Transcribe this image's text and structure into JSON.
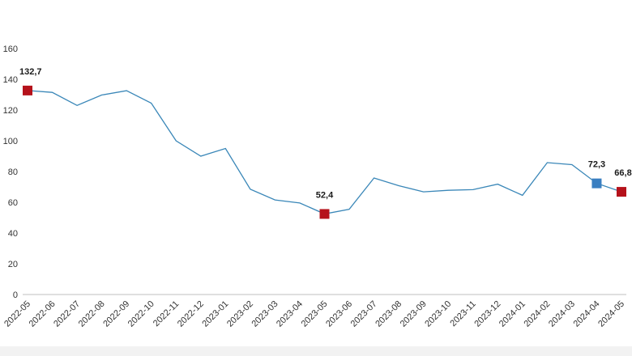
{
  "chart_data": {
    "type": "line",
    "title": "",
    "xlabel": "",
    "ylabel": "",
    "ylim": [
      0,
      160
    ],
    "yticks": [
      0,
      20,
      40,
      60,
      80,
      100,
      120,
      140,
      160
    ],
    "grid": false,
    "legend": "none",
    "categories": [
      "2022-05",
      "2022-06",
      "2022-07",
      "2022-08",
      "2022-09",
      "2022-10",
      "2022-11",
      "2022-12",
      "2023-01",
      "2023-02",
      "2023-03",
      "2023-04",
      "2023-05",
      "2023-06",
      "2023-07",
      "2023-08",
      "2023-09",
      "2023-10",
      "2023-11",
      "2023-12",
      "2024-01",
      "2024-02",
      "2024-03",
      "2024-04",
      "2024-05"
    ],
    "series": [
      {
        "values": [
          132.7,
          131.5,
          123,
          129.8,
          132.6,
          124.5,
          100,
          90,
          95,
          68.5,
          61.5,
          59.5,
          52.4,
          55.5,
          75.8,
          70.8,
          66.8,
          67.8,
          68.2,
          71.8,
          64.5,
          85.8,
          84.5,
          72.3,
          66.8
        ],
        "color": "#3a87b8"
      }
    ],
    "highlights": [
      {
        "index": 0,
        "label": "132,7",
        "color": "#b5121b"
      },
      {
        "index": 12,
        "label": "52,4",
        "color": "#b5121b"
      },
      {
        "index": 23,
        "label": "72,3",
        "color": "#3a7fc1"
      },
      {
        "index": 24,
        "label": "66,8",
        "color": "#b5121b"
      }
    ]
  }
}
